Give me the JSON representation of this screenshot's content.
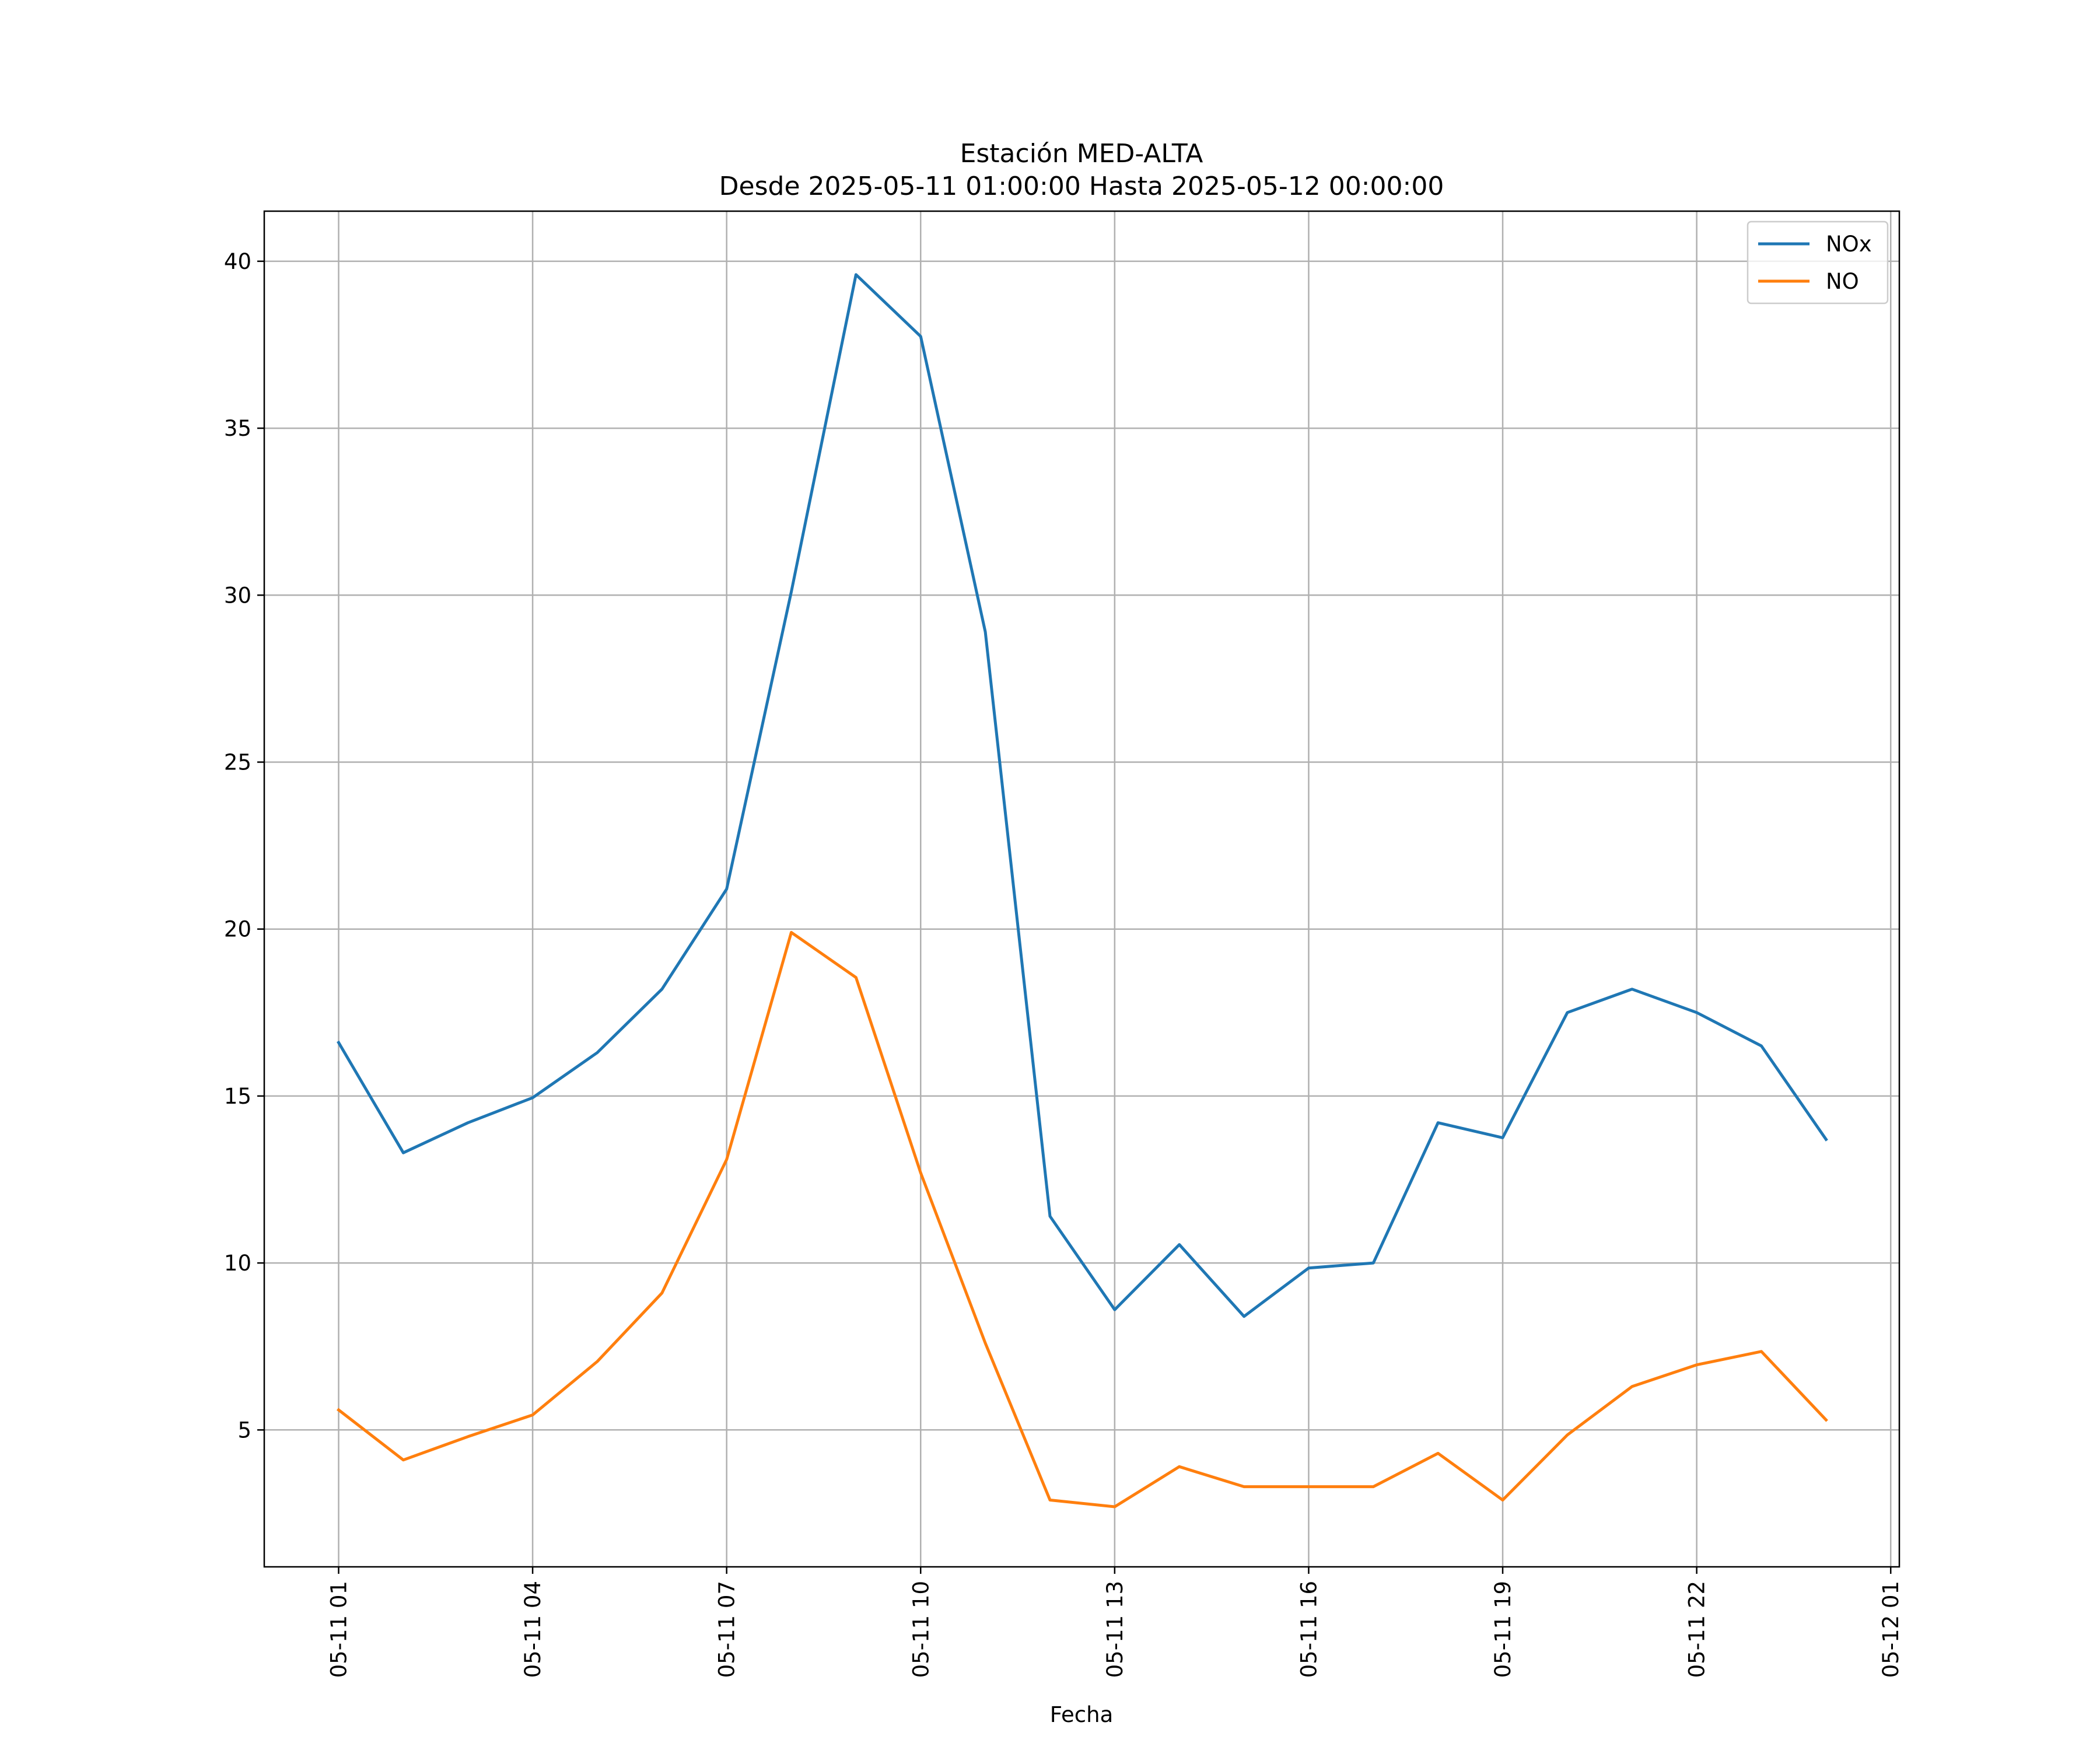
{
  "chart_data": {
    "type": "line",
    "title_line1": "Estación MED-ALTA",
    "title_line2": "Desde 2025-05-11 01:00:00 Hasta 2025-05-12 00:00:00",
    "xlabel": "Fecha",
    "ylabel": "",
    "x": [
      "2025-05-11 01:00",
      "2025-05-11 02:00",
      "2025-05-11 03:00",
      "2025-05-11 04:00",
      "2025-05-11 05:00",
      "2025-05-11 06:00",
      "2025-05-11 07:00",
      "2025-05-11 08:00",
      "2025-05-11 09:00",
      "2025-05-11 10:00",
      "2025-05-11 11:00",
      "2025-05-11 12:00",
      "2025-05-11 13:00",
      "2025-05-11 14:00",
      "2025-05-11 15:00",
      "2025-05-11 16:00",
      "2025-05-11 17:00",
      "2025-05-11 18:00",
      "2025-05-11 19:00",
      "2025-05-11 20:00",
      "2025-05-11 21:00",
      "2025-05-11 22:00",
      "2025-05-11 23:00",
      "2025-05-12 00:00"
    ],
    "xticks": [
      {
        "x": "2025-05-11 01:00",
        "label": "05-11 01"
      },
      {
        "x": "2025-05-11 04:00",
        "label": "05-11 04"
      },
      {
        "x": "2025-05-11 07:00",
        "label": "05-11 07"
      },
      {
        "x": "2025-05-11 10:00",
        "label": "05-11 10"
      },
      {
        "x": "2025-05-11 13:00",
        "label": "05-11 13"
      },
      {
        "x": "2025-05-11 16:00",
        "label": "05-11 16"
      },
      {
        "x": "2025-05-11 19:00",
        "label": "05-11 19"
      },
      {
        "x": "2025-05-11 22:00",
        "label": "05-11 22"
      },
      {
        "x": "2025-05-12 01:00",
        "label": "05-12 01"
      }
    ],
    "xlim": [
      "2025-05-10 23:51",
      "2025-05-12 01:08"
    ],
    "ylim": [
      0.9,
      41.5
    ],
    "yticks": [
      5,
      10,
      15,
      20,
      25,
      30,
      35,
      40
    ],
    "grid": true,
    "legend_position": "top-right",
    "series": [
      {
        "name": "NOx",
        "color": "#1f77b4",
        "values": [
          16.6,
          13.3,
          14.2,
          14.95,
          16.3,
          18.2,
          21.2,
          30.1,
          39.6,
          37.75,
          28.9,
          11.4,
          8.6,
          10.55,
          8.4,
          9.85,
          10.0,
          14.2,
          13.75,
          17.5,
          18.2,
          17.5,
          16.5,
          13.7
        ]
      },
      {
        "name": "NO",
        "color": "#ff7f0e",
        "values": [
          5.6,
          4.1,
          4.8,
          5.45,
          7.05,
          9.1,
          13.1,
          19.9,
          18.55,
          12.7,
          7.6,
          2.9,
          2.7,
          3.9,
          3.3,
          3.3,
          3.3,
          4.3,
          2.9,
          4.85,
          6.3,
          6.95,
          7.35,
          5.3
        ]
      }
    ]
  }
}
